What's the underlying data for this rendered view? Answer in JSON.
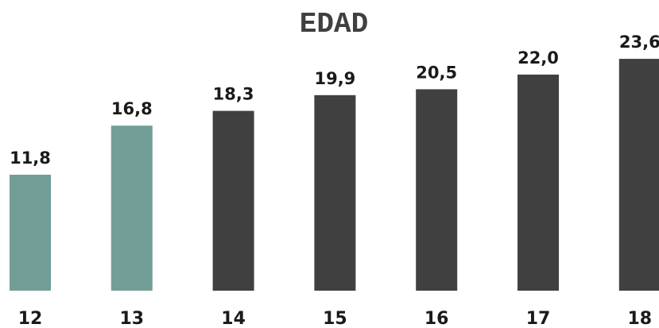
{
  "chart_data": {
    "type": "bar",
    "title": "EDAD",
    "xlabel": "",
    "ylabel": "",
    "categories": [
      "12",
      "13",
      "14",
      "15",
      "16",
      "17",
      "18"
    ],
    "values": [
      11.8,
      16.8,
      18.3,
      19.9,
      20.5,
      22.0,
      23.6
    ],
    "value_labels": [
      "11,8",
      "16,8",
      "18,3",
      "19,9",
      "20,5",
      "22,0",
      "23,6"
    ],
    "bar_colors": [
      "#739e98",
      "#739e98",
      "#404040",
      "#404040",
      "#404040",
      "#404040",
      "#404040"
    ],
    "ylim": [
      0,
      24
    ],
    "grid": false,
    "legend": "none"
  }
}
